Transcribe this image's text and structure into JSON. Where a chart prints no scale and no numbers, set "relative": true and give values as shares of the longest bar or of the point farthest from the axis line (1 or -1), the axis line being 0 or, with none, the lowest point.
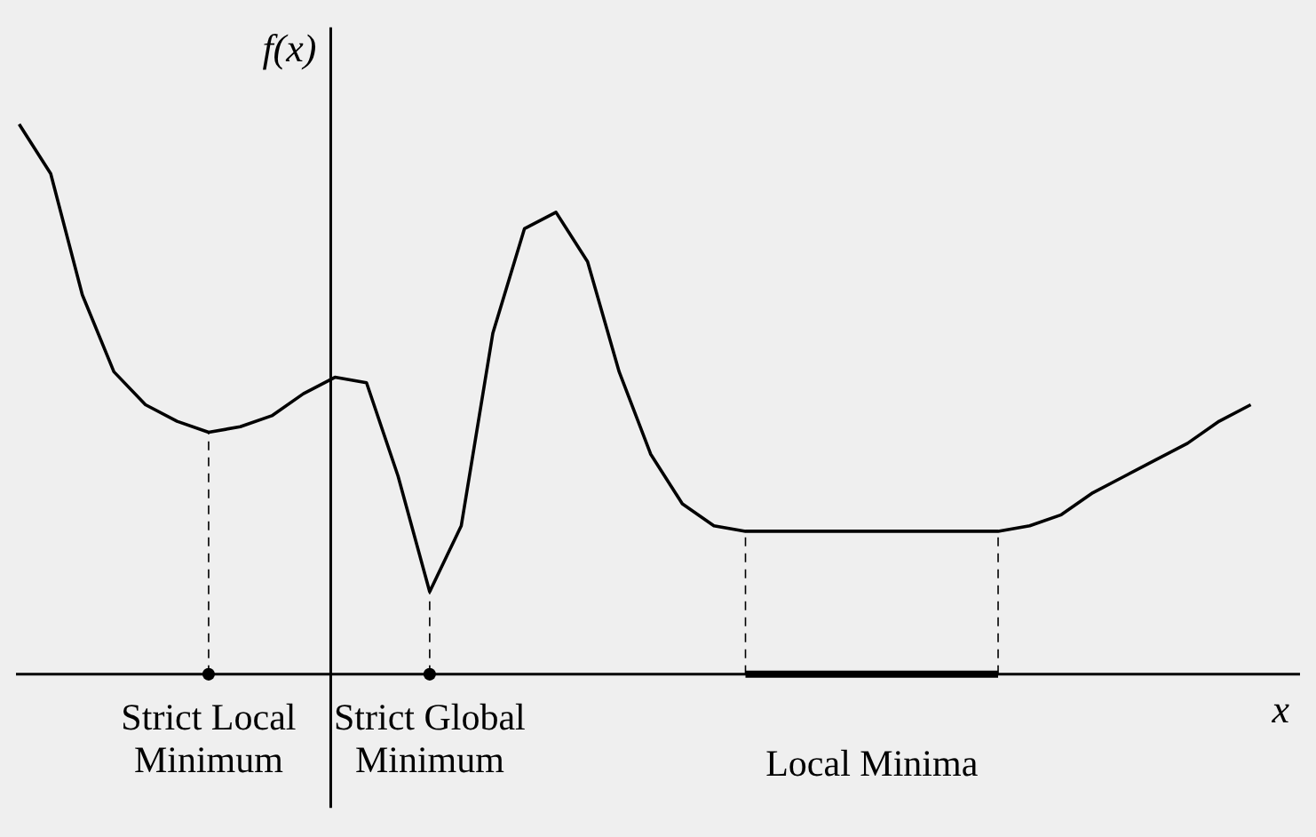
{
  "chart_data": {
    "type": "line",
    "relative": true,
    "xlabel": "x",
    "ylabel": "f(x)",
    "marker": "none",
    "line_style": "solid",
    "categories": [
      null,
      null,
      null,
      null,
      null,
      null,
      null,
      null,
      null,
      null,
      null,
      null,
      null,
      null,
      null,
      null,
      null,
      null,
      null,
      null,
      null,
      null,
      null,
      null,
      null,
      null,
      null,
      null,
      null,
      null,
      null,
      null,
      null,
      null,
      null,
      null,
      null,
      null,
      null,
      null
    ],
    "series": [
      {
        "color": "#000000",
        "values": [
          1.0,
          0.91,
          0.69,
          0.55,
          0.49,
          0.46,
          0.44,
          0.45,
          0.47,
          0.51,
          0.54,
          0.53,
          0.36,
          0.15,
          0.27,
          0.62,
          0.81,
          0.84,
          0.75,
          0.55,
          0.4,
          0.31,
          0.27,
          0.26,
          0.26,
          0.26,
          0.26,
          0.26,
          0.26,
          0.26,
          0.26,
          0.26,
          0.27,
          0.29,
          0.33,
          0.36,
          0.39,
          0.42,
          0.46,
          0.49
        ]
      }
    ],
    "annotations": [
      "Strict Local Minimum",
      "Strict Global Minimum",
      "Local Minima"
    ]
  }
}
